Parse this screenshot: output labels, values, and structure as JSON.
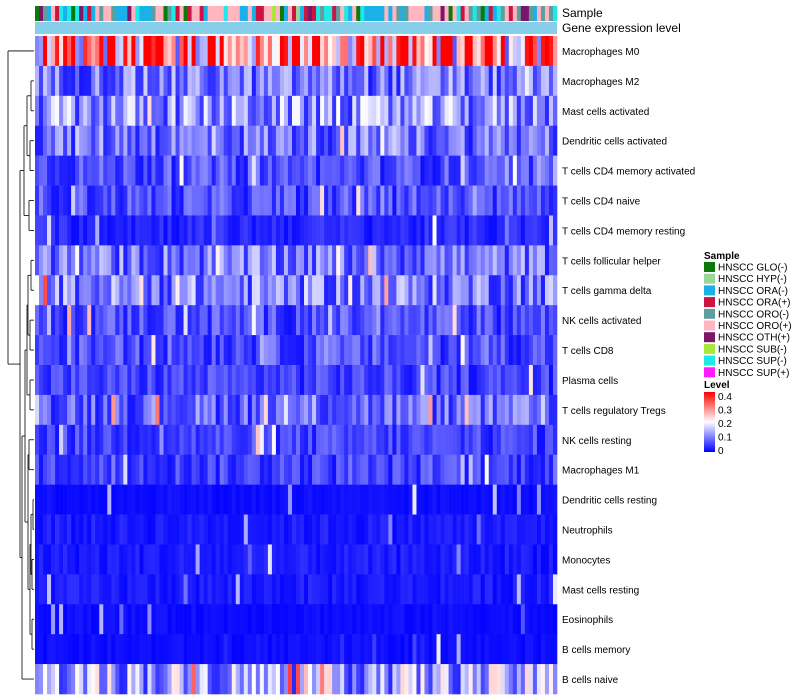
{
  "chart_data": {
    "type": "heatmap",
    "title": "",
    "annotation_tracks": [
      "Sample",
      "Gene expression level"
    ],
    "rows": [
      "Macrophages M0",
      "Macrophages M2",
      "Mast cells activated",
      "Dendritic cells activated",
      "T cells CD4 memory activated",
      "T cells CD4 naive",
      "T cells CD4 memory resting",
      "T cells follicular helper",
      "T cells gamma delta",
      "NK cells activated",
      "T cells CD8",
      "Plasma cells",
      "T cells regulatory  Tregs",
      "NK cells resting",
      "Macrophages M1",
      "Dendritic cells resting",
      "Neutrophils",
      "Monocytes",
      "Mast cells resting",
      "Eosinophils",
      "B cells memory",
      "B cells naive"
    ],
    "row_mean_level": [
      0.3,
      0.09,
      0.11,
      0.09,
      0.06,
      0.06,
      0.03,
      0.09,
      0.1,
      0.06,
      0.06,
      0.05,
      0.08,
      0.05,
      0.05,
      0.01,
      0.02,
      0.02,
      0.02,
      0.01,
      0.01,
      0.13
    ],
    "n_samples": 130,
    "sample_legend": {
      "title": "Sample",
      "entries": [
        {
          "label": "HNSCC GLO(-)",
          "color": "#0b7a0b"
        },
        {
          "label": "HNSCC HYP(-)",
          "color": "#9ad69a"
        },
        {
          "label": "HNSCC ORA(-)",
          "color": "#1ab0e8"
        },
        {
          "label": "HNSCC ORA(+)",
          "color": "#cc1443"
        },
        {
          "label": "HNSCC ORO(-)",
          "color": "#5f9ea0"
        },
        {
          "label": "HNSCC ORO(+)",
          "color": "#ffb6c1"
        },
        {
          "label": "HNSCC OTH(+)",
          "color": "#7b1668"
        },
        {
          "label": "HNSCC SUB(-)",
          "color": "#a8e838"
        },
        {
          "label": "HNSCC SUP(-)",
          "color": "#1ee8e8"
        },
        {
          "label": "HNSCC SUP(+)",
          "color": "#ff1aff"
        }
      ]
    },
    "level_legend": {
      "title": "Level",
      "ticks": [
        "0.4",
        "0.3",
        "0.2",
        "0.1",
        "0"
      ],
      "range": [
        0,
        0.4
      ]
    },
    "gene_expression_color": "#87ceeb",
    "colors": {
      "low": "#0000ff",
      "mid": "#ffffff",
      "high": "#ff0000"
    }
  }
}
